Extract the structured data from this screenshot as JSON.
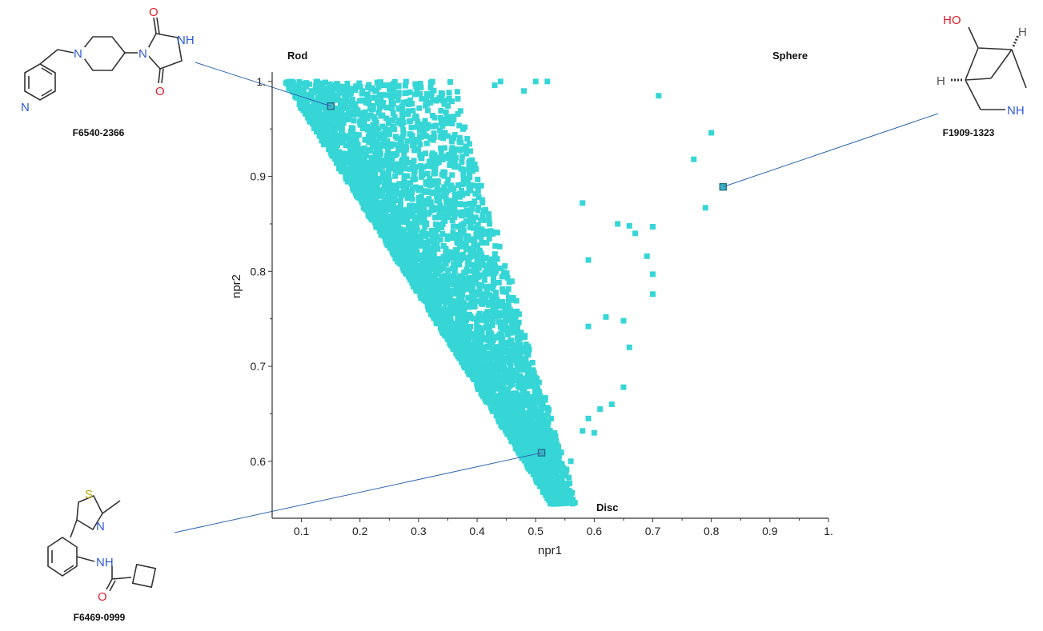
{
  "chart_data": {
    "type": "scatter",
    "xlabel": "npr1",
    "ylabel": "npr2",
    "xlim": [
      0.05,
      1.0
    ],
    "ylim": [
      0.54,
      1.01
    ],
    "x_ticks": [
      "0.1",
      "0.2",
      "0.3",
      "0.4",
      "0.5",
      "0.6",
      "0.7",
      "0.8",
      "0.9",
      "1."
    ],
    "x_tick_values": [
      0.1,
      0.2,
      0.3,
      0.4,
      0.5,
      0.6,
      0.7,
      0.8,
      0.9,
      1.0
    ],
    "y_ticks": [
      "0.6",
      "0.7",
      "0.8",
      "0.9",
      "1."
    ],
    "y_tick_values": [
      0.6,
      0.7,
      0.8,
      0.9,
      1.0
    ],
    "grid": false,
    "marker_color": "#36D6D6",
    "highlight_color": "#1F6F8B",
    "leader_color": "#2F67B1",
    "corner_labels": {
      "rod": "Rod",
      "sphere": "Sphere",
      "disc": "Disc"
    },
    "dense_region": {
      "description_points": "triangular shape-space distribution bounded by the Rod-Disc edge",
      "rod_disc_edge": [
        [
          0.07,
          1.0
        ],
        [
          0.52,
          0.56
        ]
      ],
      "approx_point_count": 5200
    },
    "outliers": [
      [
        0.71,
        0.985
      ],
      [
        0.8,
        0.946
      ],
      [
        0.77,
        0.918
      ],
      [
        0.79,
        0.867
      ],
      [
        0.64,
        0.85
      ],
      [
        0.66,
        0.848
      ],
      [
        0.67,
        0.84
      ],
      [
        0.7,
        0.847
      ],
      [
        0.69,
        0.816
      ],
      [
        0.7,
        0.797
      ],
      [
        0.7,
        0.776
      ],
      [
        0.62,
        0.752
      ],
      [
        0.65,
        0.748
      ],
      [
        0.66,
        0.72
      ],
      [
        0.65,
        0.678
      ],
      [
        0.63,
        0.66
      ],
      [
        0.61,
        0.655
      ],
      [
        0.59,
        0.645
      ],
      [
        0.58,
        0.632
      ],
      [
        0.6,
        0.63
      ],
      [
        0.56,
        0.6
      ],
      [
        0.55,
        0.585
      ],
      [
        0.59,
        0.742
      ],
      [
        0.59,
        0.812
      ],
      [
        0.58,
        0.872
      ],
      [
        0.44,
        1.0
      ],
      [
        0.5,
        1.0
      ],
      [
        0.52,
        1.0
      ],
      [
        0.48,
        0.99
      ],
      [
        0.43,
        0.996
      ]
    ],
    "highlighted_points": [
      {
        "id": "F6540-2366",
        "npr1": 0.15,
        "npr2": 0.974
      },
      {
        "id": "F1909-1323",
        "npr1": 0.82,
        "npr2": 0.889
      },
      {
        "id": "F6469-0999",
        "npr1": 0.51,
        "npr2": 0.609
      }
    ]
  },
  "molecules": {
    "top_left": {
      "id": "F6540-2366",
      "atoms": {
        "n_pyridine": "N",
        "n_piperidine": "N",
        "n_imide": "N",
        "nh": "NH",
        "o_top": "O",
        "o_bottom": "O"
      }
    },
    "top_right": {
      "id": "F1909-1323",
      "atoms": {
        "ho": "HO",
        "h_top": "H",
        "h_left": "H",
        "nh": "NH"
      }
    },
    "bottom_left": {
      "id": "F6469-0999",
      "atoms": {
        "s": "S",
        "n_thiazole": "N",
        "nh": "NH",
        "o": "O"
      }
    }
  }
}
